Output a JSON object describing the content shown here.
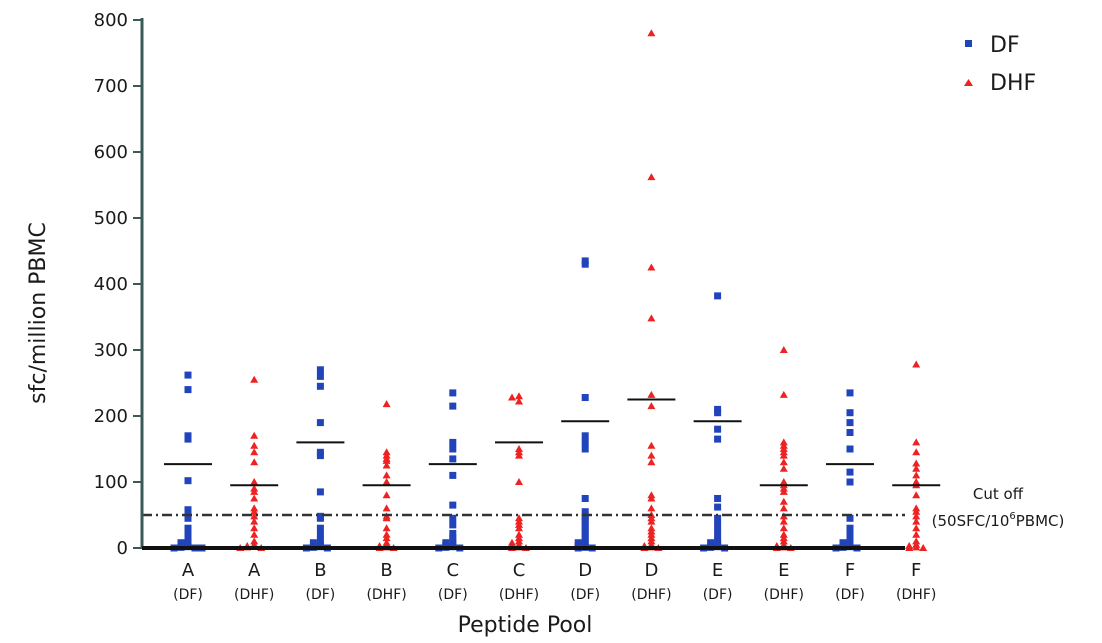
{
  "chart_data": {
    "type": "scatter",
    "title": "",
    "xlabel": "Peptide Pool",
    "ylabel": "sfc/million PBMC",
    "ylim": [
      0,
      800
    ],
    "yticks": [
      0,
      100,
      200,
      300,
      400,
      500,
      600,
      700,
      800
    ],
    "grid": false,
    "legend_position": "top-right",
    "cutoff": {
      "value": 50,
      "label_line1": "Cut off",
      "label_line2_prefix": "(50SFC/10",
      "label_line2_sup": "6",
      "label_line2_suffix": "PBMC)"
    },
    "categories": [
      {
        "main": "A",
        "sub": "(DF)",
        "series": "DF",
        "median": 127,
        "values": [
          262,
          240,
          170,
          165,
          102,
          58,
          55,
          45,
          30,
          22,
          15,
          10,
          8,
          5,
          3,
          2,
          1,
          0,
          0,
          0
        ]
      },
      {
        "main": "A",
        "sub": "(DHF)",
        "series": "DHF",
        "median": 95,
        "values": [
          255,
          170,
          155,
          145,
          130,
          100,
          90,
          85,
          75,
          60,
          55,
          48,
          40,
          30,
          20,
          10,
          5,
          3,
          2,
          1,
          0,
          0
        ]
      },
      {
        "main": "B",
        "sub": "(DF)",
        "series": "DF",
        "median": 160,
        "values": [
          270,
          260,
          245,
          190,
          145,
          140,
          85,
          48,
          45,
          30,
          20,
          12,
          8,
          5,
          2,
          1,
          0,
          0
        ]
      },
      {
        "main": "B",
        "sub": "(DHF)",
        "series": "DHF",
        "median": 95,
        "values": [
          218,
          145,
          140,
          135,
          132,
          125,
          110,
          100,
          80,
          60,
          48,
          45,
          30,
          20,
          15,
          8,
          5,
          3,
          1,
          0,
          0
        ]
      },
      {
        "main": "C",
        "sub": "(DF)",
        "series": "DF",
        "median": 127,
        "values": [
          235,
          215,
          160,
          150,
          135,
          110,
          65,
          45,
          35,
          22,
          15,
          10,
          8,
          5,
          3,
          2,
          1,
          0,
          0
        ]
      },
      {
        "main": "C",
        "sub": "(DHF)",
        "series": "DHF",
        "median": 160,
        "values": [
          230,
          228,
          222,
          150,
          145,
          140,
          100,
          45,
          40,
          35,
          30,
          20,
          15,
          10,
          8,
          5,
          3,
          1,
          0,
          0
        ]
      },
      {
        "main": "D",
        "sub": "(DF)",
        "series": "DF",
        "median": 192,
        "values": [
          435,
          430,
          228,
          170,
          160,
          150,
          75,
          55,
          48,
          45,
          40,
          35,
          30,
          25,
          20,
          15,
          10,
          8,
          5,
          3,
          1,
          0,
          0
        ]
      },
      {
        "main": "D",
        "sub": "(DHF)",
        "series": "DHF",
        "median": 225,
        "values": [
          780,
          562,
          425,
          348,
          232,
          215,
          155,
          140,
          130,
          80,
          75,
          60,
          50,
          45,
          40,
          30,
          25,
          20,
          15,
          10,
          5,
          3,
          1,
          0,
          0
        ]
      },
      {
        "main": "E",
        "sub": "(DF)",
        "series": "DF",
        "median": 192,
        "values": [
          382,
          210,
          205,
          180,
          165,
          75,
          62,
          45,
          35,
          25,
          15,
          10,
          8,
          5,
          2,
          1,
          0,
          0
        ]
      },
      {
        "main": "E",
        "sub": "(DHF)",
        "series": "DHF",
        "median": 95,
        "values": [
          300,
          232,
          160,
          155,
          150,
          145,
          140,
          130,
          120,
          100,
          95,
          90,
          85,
          70,
          60,
          48,
          40,
          30,
          20,
          15,
          10,
          5,
          3,
          1,
          0,
          0
        ]
      },
      {
        "main": "F",
        "sub": "(DF)",
        "series": "DF",
        "median": 127,
        "values": [
          235,
          205,
          190,
          175,
          150,
          115,
          100,
          45,
          30,
          25,
          20,
          15,
          10,
          8,
          5,
          3,
          2,
          1,
          0,
          0
        ]
      },
      {
        "main": "F",
        "sub": "(DHF)",
        "series": "DHF",
        "median": 95,
        "values": [
          278,
          160,
          145,
          128,
          120,
          110,
          100,
          95,
          80,
          60,
          55,
          48,
          40,
          30,
          20,
          10,
          5,
          3,
          1,
          0,
          0
        ]
      }
    ],
    "legend": [
      {
        "name": "DF",
        "color": "#2244bb",
        "marker": "square"
      },
      {
        "name": "DHF",
        "color": "#ee2222",
        "marker": "triangle"
      }
    ]
  }
}
